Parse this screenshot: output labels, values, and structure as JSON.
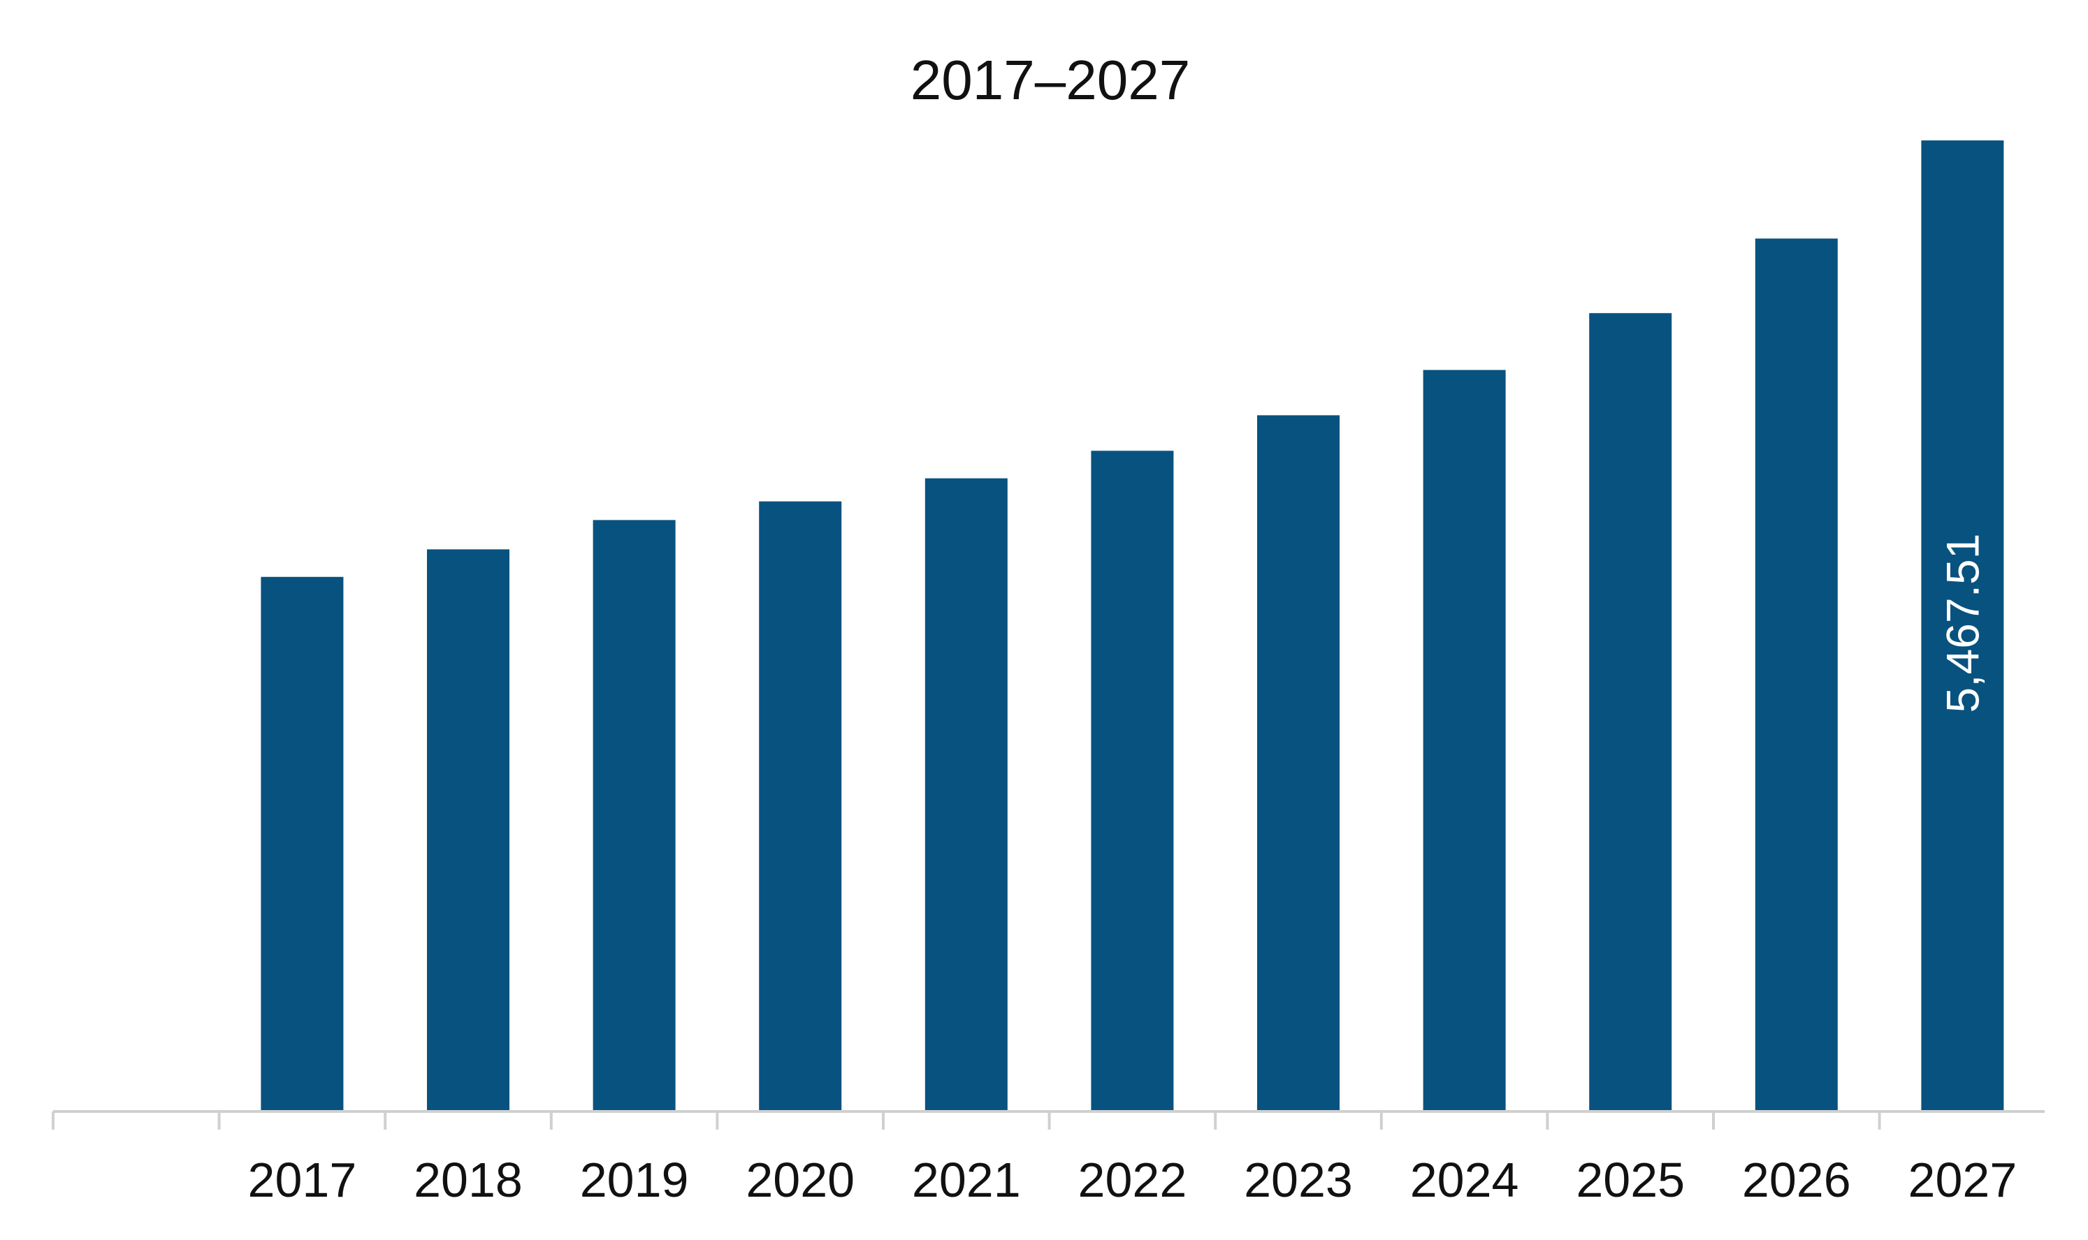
{
  "chart_data": {
    "type": "bar",
    "title": "2017–2027",
    "xlabel": "",
    "ylabel": "",
    "categories": [
      "2017",
      "2018",
      "2019",
      "2020",
      "2021",
      "2022",
      "2023",
      "2024",
      "2025",
      "2026",
      "2027"
    ],
    "values": [
      3010,
      3165,
      3330,
      3435,
      3565,
      3720,
      3920,
      4175,
      4495,
      4915,
      5467.51
    ],
    "data_labels": [
      "",
      "",
      "",
      "",
      "",
      "",
      "",
      "",
      "",
      "",
      "5,467.51"
    ],
    "ylim": [
      0,
      5467.51
    ],
    "grid": false,
    "legend": "none",
    "colors": {
      "bar": "#08527f",
      "axis": "#d0d0d0",
      "text": "#111111",
      "data_label": "#ffffff"
    }
  }
}
